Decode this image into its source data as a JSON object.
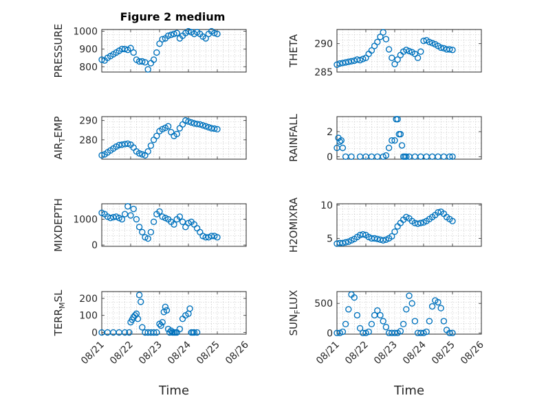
{
  "figure_title": "Figure 2 medium",
  "colors": {
    "marker": "#0072BD"
  },
  "chart_data": [
    {
      "type": "scatter",
      "id": "pressure",
      "ylabel": "PRESSURE",
      "ylim": [
        770,
        1010
      ],
      "yticks": [
        800,
        900,
        1000
      ],
      "ytick_labels": [
        "800",
        "900",
        "1000"
      ],
      "xlim": [
        0,
        5
      ],
      "xticks": [],
      "grid": true,
      "x": [
        0,
        0.1,
        0.2,
        0.3,
        0.4,
        0.5,
        0.6,
        0.7,
        0.8,
        0.9,
        1.0,
        1.1,
        1.2,
        1.3,
        1.4,
        1.5,
        1.6,
        1.7,
        1.8,
        1.9,
        2.0,
        2.1,
        2.2,
        2.3,
        2.4,
        2.5,
        2.6,
        2.7,
        2.8,
        2.9,
        3.0,
        3.1,
        3.2,
        3.3,
        3.4,
        3.5,
        3.6,
        3.7,
        3.8,
        3.9,
        4.0
      ],
      "y": [
        840,
        835,
        850,
        860,
        870,
        880,
        890,
        900,
        900,
        895,
        905,
        880,
        840,
        830,
        830,
        825,
        785,
        820,
        840,
        880,
        930,
        955,
        960,
        975,
        980,
        985,
        990,
        960,
        975,
        990,
        1000,
        995,
        985,
        995,
        985,
        970,
        960,
        985,
        1000,
        990,
        985
      ]
    },
    {
      "type": "scatter",
      "id": "theta",
      "ylabel": "THETA",
      "ylim": [
        285,
        292.5
      ],
      "yticks": [
        285,
        290
      ],
      "ytick_labels": [
        "285",
        "290"
      ],
      "xlim": [
        0,
        5
      ],
      "xticks": [],
      "grid": true,
      "x": [
        0,
        0.1,
        0.2,
        0.3,
        0.4,
        0.5,
        0.6,
        0.7,
        0.8,
        0.9,
        1.0,
        1.1,
        1.2,
        1.3,
        1.4,
        1.5,
        1.6,
        1.7,
        1.8,
        1.9,
        2.0,
        2.1,
        2.2,
        2.3,
        2.4,
        2.5,
        2.6,
        2.7,
        2.8,
        2.9,
        3.0,
        3.1,
        3.2,
        3.3,
        3.4,
        3.5,
        3.6,
        3.7,
        3.8,
        3.9,
        4.0
      ],
      "y": [
        286.3,
        286.5,
        286.6,
        286.7,
        286.8,
        286.9,
        287,
        287.2,
        287.1,
        287.3,
        287.5,
        288.2,
        288.8,
        289.6,
        290.3,
        291.2,
        292,
        290.8,
        289,
        287.5,
        286.4,
        287.2,
        288,
        288.6,
        288.9,
        288.7,
        288.5,
        288.2,
        287.5,
        288.6,
        290.5,
        290.6,
        290.3,
        290.1,
        289.9,
        289.6,
        289.3,
        289.2,
        289,
        289,
        288.9
      ]
    },
    {
      "type": "scatter",
      "id": "air_temp",
      "ylabel": "AIR_TEMP",
      "ylim": [
        270,
        292
      ],
      "yticks": [
        280,
        290
      ],
      "ytick_labels": [
        "280",
        "290"
      ],
      "xlim": [
        0,
        5
      ],
      "xticks": [],
      "grid": true,
      "x": [
        0,
        0.1,
        0.2,
        0.3,
        0.4,
        0.5,
        0.6,
        0.7,
        0.8,
        0.9,
        1.0,
        1.1,
        1.2,
        1.3,
        1.4,
        1.5,
        1.6,
        1.7,
        1.8,
        1.9,
        2.0,
        2.1,
        2.2,
        2.3,
        2.4,
        2.5,
        2.6,
        2.7,
        2.8,
        2.9,
        3.0,
        3.1,
        3.2,
        3.3,
        3.4,
        3.5,
        3.6,
        3.7,
        3.8,
        3.9,
        4.0
      ],
      "y": [
        272,
        272.5,
        273.5,
        274.5,
        275.5,
        276.5,
        277.3,
        277.5,
        277.8,
        278,
        277.5,
        276,
        274,
        273,
        272.5,
        272,
        274,
        277,
        280,
        282,
        284.5,
        285.5,
        286.2,
        287,
        284,
        282,
        283,
        286,
        288,
        290,
        289.5,
        289,
        288.5,
        288.2,
        288,
        287.5,
        287,
        286.5,
        286,
        285.8,
        285.5
      ]
    },
    {
      "type": "scatter",
      "id": "rainfall",
      "ylabel": "RAINFALL",
      "ylim": [
        -0.2,
        3.2
      ],
      "yticks": [
        0,
        2
      ],
      "ytick_labels": [
        "0",
        "2"
      ],
      "xlim": [
        0,
        5
      ],
      "xticks": [],
      "grid": true,
      "x": [
        0,
        0.05,
        0.1,
        0.15,
        0.2,
        0.3,
        0.5,
        0.8,
        1.0,
        1.2,
        1.4,
        1.6,
        1.7,
        1.8,
        1.9,
        2.0,
        2.05,
        2.1,
        2.15,
        2.2,
        2.25,
        2.3,
        2.35,
        2.4,
        2.5,
        2.7,
        2.9,
        3.1,
        3.3,
        3.5,
        3.7,
        3.9,
        4.0
      ],
      "y": [
        0.7,
        1.5,
        1.2,
        1.3,
        0.7,
        0,
        0,
        0,
        0,
        0,
        0,
        0,
        0.1,
        0.7,
        1.3,
        1.3,
        3.0,
        3.0,
        1.8,
        1.8,
        0.9,
        0,
        0,
        0,
        0,
        0,
        0,
        0,
        0,
        0,
        0,
        0,
        0
      ]
    },
    {
      "type": "scatter",
      "id": "mixdepth",
      "ylabel": "MIXDEPTH",
      "ylim": [
        -50,
        1600
      ],
      "yticks": [
        0,
        1000
      ],
      "ytick_labels": [
        "0",
        "1000"
      ],
      "xlim": [
        0,
        5
      ],
      "xticks": [],
      "grid": true,
      "x": [
        0,
        0.1,
        0.2,
        0.3,
        0.4,
        0.5,
        0.6,
        0.7,
        0.8,
        0.9,
        1.0,
        1.1,
        1.2,
        1.3,
        1.4,
        1.5,
        1.6,
        1.7,
        1.8,
        1.9,
        2.0,
        2.1,
        2.2,
        2.3,
        2.4,
        2.5,
        2.6,
        2.7,
        2.8,
        2.9,
        3.0,
        3.1,
        3.2,
        3.3,
        3.4,
        3.5,
        3.6,
        3.7,
        3.8,
        3.9,
        4.0
      ],
      "y": [
        1250,
        1200,
        1100,
        1050,
        1080,
        1100,
        1050,
        1000,
        1200,
        1500,
        1150,
        1400,
        1000,
        700,
        500,
        300,
        250,
        500,
        900,
        1200,
        1300,
        1100,
        1050,
        1000,
        900,
        800,
        1000,
        1100,
        900,
        700,
        850,
        900,
        800,
        650,
        500,
        350,
        300,
        300,
        350,
        350,
        300
      ]
    },
    {
      "type": "scatter",
      "id": "h2omixra",
      "ylabel": "H2OMIXRA",
      "ylim": [
        3.8,
        10.2
      ],
      "yticks": [
        5,
        10
      ],
      "ytick_labels": [
        "5",
        "10"
      ],
      "xlim": [
        0,
        5
      ],
      "xticks": [],
      "grid": true,
      "x": [
        0,
        0.1,
        0.2,
        0.3,
        0.4,
        0.5,
        0.6,
        0.7,
        0.8,
        0.9,
        1.0,
        1.1,
        1.2,
        1.3,
        1.4,
        1.5,
        1.6,
        1.7,
        1.8,
        1.9,
        2.0,
        2.1,
        2.2,
        2.3,
        2.4,
        2.5,
        2.6,
        2.7,
        2.8,
        2.9,
        3.0,
        3.1,
        3.2,
        3.3,
        3.4,
        3.5,
        3.6,
        3.7,
        3.8,
        3.9,
        4.0
      ],
      "y": [
        4.2,
        4.3,
        4.3,
        4.4,
        4.5,
        4.7,
        4.9,
        5.2,
        5.5,
        5.6,
        5.5,
        5.2,
        5.0,
        5.0,
        4.9,
        4.8,
        4.7,
        4.8,
        5.0,
        5.3,
        6.0,
        6.8,
        7.3,
        7.8,
        8.2,
        8.0,
        7.6,
        7.3,
        7.2,
        7.3,
        7.4,
        7.6,
        7.9,
        8.2,
        8.5,
        8.9,
        9.0,
        8.7,
        8.2,
        7.9,
        7.6
      ]
    },
    {
      "type": "scatter",
      "id": "terr_msl",
      "ylabel": "TERR_MSL",
      "ylim": [
        -10,
        240
      ],
      "yticks": [
        0,
        100,
        200
      ],
      "ytick_labels": [
        "0",
        "100",
        "200"
      ],
      "xlim": [
        0,
        5
      ],
      "xticks": [
        0,
        1,
        2,
        3,
        4,
        5
      ],
      "xtick_labels": [
        "08/21",
        "08/22",
        "08/23",
        "08/24",
        "08/25",
        "08/26"
      ],
      "xlabel": "Time",
      "grid": true,
      "x": [
        0,
        0.2,
        0.4,
        0.6,
        0.8,
        0.95,
        1.0,
        1.05,
        1.1,
        1.15,
        1.2,
        1.25,
        1.3,
        1.35,
        1.4,
        1.5,
        1.6,
        1.7,
        1.8,
        1.9,
        2.0,
        2.05,
        2.1,
        2.15,
        2.2,
        2.25,
        2.3,
        2.35,
        2.4,
        2.45,
        2.5,
        2.55,
        2.6,
        2.7,
        2.8,
        2.9,
        3.0,
        3.05,
        3.1,
        3.15,
        3.2,
        3.3
      ],
      "y": [
        0,
        0,
        0,
        0,
        0,
        0,
        60,
        75,
        90,
        100,
        110,
        80,
        220,
        180,
        30,
        0,
        0,
        0,
        0,
        0,
        50,
        40,
        60,
        120,
        150,
        130,
        20,
        0,
        10,
        0,
        0,
        0,
        0,
        20,
        80,
        100,
        110,
        140,
        0,
        0,
        0,
        0
      ]
    },
    {
      "type": "scatter",
      "id": "sun_flux",
      "ylabel": "SUN_FLUX",
      "ylim": [
        -20,
        700
      ],
      "yticks": [
        0,
        500
      ],
      "ytick_labels": [
        "0",
        "500"
      ],
      "xlim": [
        0,
        5
      ],
      "xticks": [
        0,
        1,
        2,
        3,
        4,
        5
      ],
      "xtick_labels": [
        "08/21",
        "08/22",
        "08/23",
        "08/24",
        "08/25",
        "08/26"
      ],
      "xlabel": "Time",
      "grid": true,
      "x": [
        0,
        0.1,
        0.2,
        0.3,
        0.4,
        0.5,
        0.6,
        0.7,
        0.8,
        0.9,
        1.0,
        1.1,
        1.2,
        1.3,
        1.4,
        1.5,
        1.6,
        1.7,
        1.8,
        1.9,
        2.0,
        2.1,
        2.2,
        2.3,
        2.4,
        2.5,
        2.6,
        2.7,
        2.8,
        2.9,
        3.0,
        3.1,
        3.2,
        3.3,
        3.4,
        3.5,
        3.6,
        3.7,
        3.8,
        3.9,
        4.0
      ],
      "y": [
        0,
        0,
        20,
        150,
        400,
        650,
        600,
        300,
        80,
        0,
        0,
        20,
        150,
        300,
        380,
        300,
        200,
        100,
        0,
        0,
        0,
        0,
        30,
        150,
        400,
        630,
        500,
        200,
        0,
        0,
        0,
        20,
        200,
        450,
        550,
        520,
        420,
        200,
        50,
        0,
        0
      ]
    }
  ]
}
